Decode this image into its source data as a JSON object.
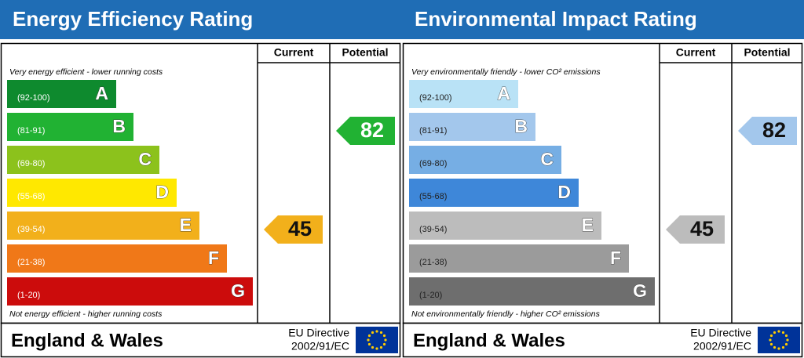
{
  "panels": [
    {
      "title": "Energy Efficiency Rating",
      "columns": [
        "Current",
        "Potential"
      ],
      "top_note": "Very energy efficient - lower running costs",
      "bottom_note": "Not energy efficient - higher running costs",
      "bands": [
        {
          "range": "(92-100)",
          "letter": "A",
          "color": "#0e8a2e"
        },
        {
          "range": "(81-91)",
          "letter": "B",
          "color": "#21b233"
        },
        {
          "range": "(69-80)",
          "letter": "C",
          "color": "#8cc21c"
        },
        {
          "range": "(55-68)",
          "letter": "D",
          "color": "#ffe800"
        },
        {
          "range": "(39-54)",
          "letter": "E",
          "color": "#f2b01b"
        },
        {
          "range": "(21-38)",
          "letter": "F",
          "color": "#f07818"
        },
        {
          "range": "(1-20)",
          "letter": "G",
          "color": "#cc0c0c"
        }
      ],
      "current": 45,
      "potential": 82,
      "footer": {
        "region": "England & Wales",
        "directive": [
          "EU Directive",
          "2002/91/EC"
        ]
      }
    },
    {
      "title": "Environmental Impact Rating",
      "columns": [
        "Current",
        "Potential"
      ],
      "top_note": "Very environmentally friendly - lower CO² emissions",
      "bottom_note": "Not environmentally friendly - higher CO² emissions",
      "bands": [
        {
          "range": "(92-100)",
          "letter": "A",
          "color": "#b9e2f6"
        },
        {
          "range": "(81-91)",
          "letter": "B",
          "color": "#a3c7ec"
        },
        {
          "range": "(69-80)",
          "letter": "C",
          "color": "#76aee4"
        },
        {
          "range": "(55-68)",
          "letter": "D",
          "color": "#3e87d9"
        },
        {
          "range": "(39-54)",
          "letter": "E",
          "color": "#bcbcbc"
        },
        {
          "range": "(21-38)",
          "letter": "F",
          "color": "#9b9b9b"
        },
        {
          "range": "(1-20)",
          "letter": "G",
          "color": "#6e6e6e"
        }
      ],
      "current": 45,
      "potential": 82,
      "footer": {
        "region": "England & Wales",
        "directive": [
          "EU Directive",
          "2002/91/EC"
        ]
      }
    }
  ]
}
